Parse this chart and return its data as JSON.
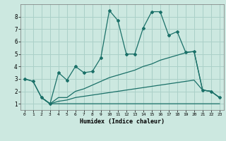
{
  "title": "",
  "xlabel": "Humidex (Indice chaleur)",
  "ylabel": "",
  "background_color": "#cce8e0",
  "grid_color": "#aad0c8",
  "line_color": "#1a7068",
  "xlim": [
    -0.5,
    23.5
  ],
  "ylim": [
    0.5,
    9.0
  ],
  "xticks": [
    0,
    1,
    2,
    3,
    4,
    5,
    6,
    7,
    8,
    9,
    10,
    11,
    12,
    13,
    14,
    15,
    16,
    17,
    18,
    19,
    20,
    21,
    22,
    23
  ],
  "yticks": [
    1,
    2,
    3,
    4,
    5,
    6,
    7,
    8
  ],
  "series": [
    [
      3.0,
      2.8,
      1.5,
      1.0,
      3.5,
      2.9,
      4.0,
      3.5,
      3.6,
      4.7,
      8.5,
      7.7,
      5.0,
      5.0,
      7.1,
      8.4,
      8.4,
      6.5,
      6.8,
      5.15,
      5.2,
      2.1,
      2.0,
      1.5
    ],
    [
      3.0,
      2.8,
      1.5,
      1.0,
      1.5,
      1.5,
      2.0,
      2.2,
      2.5,
      2.8,
      3.1,
      3.3,
      3.5,
      3.7,
      4.0,
      4.2,
      4.5,
      4.7,
      4.9,
      5.1,
      5.2,
      2.1,
      2.0,
      1.5
    ],
    [
      null,
      null,
      1.5,
      1.0,
      1.2,
      1.3,
      1.5,
      1.6,
      1.7,
      1.8,
      1.9,
      2.0,
      2.1,
      2.2,
      2.3,
      2.4,
      2.5,
      2.6,
      2.7,
      2.8,
      2.9,
      2.1,
      2.0,
      1.5
    ],
    [
      null,
      null,
      1.5,
      1.0,
      1.0,
      1.0,
      1.0,
      1.0,
      1.0,
      1.0,
      1.0,
      1.0,
      1.0,
      1.0,
      1.0,
      1.0,
      1.0,
      1.0,
      1.0,
      1.0,
      1.0,
      1.0,
      1.0,
      1.0
    ]
  ]
}
